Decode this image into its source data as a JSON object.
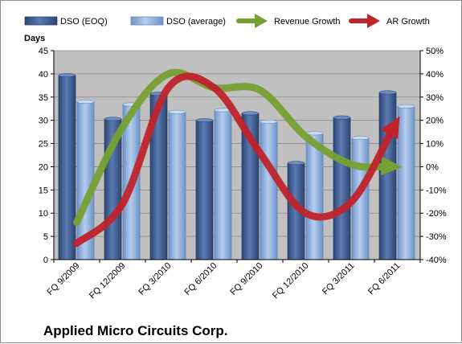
{
  "chart_data": {
    "type": "bar",
    "title": "Applied Micro Circuits Corp.",
    "ylabel": "Days",
    "categories": [
      "FQ 9/2009",
      "FQ 12/2009",
      "FQ 3/2010",
      "FQ 6/2010",
      "FQ 9/2010",
      "FQ 12/2010",
      "FQ 3/2011",
      "FQ 6/2011"
    ],
    "ylim": [
      0,
      45
    ],
    "y_ticks": [
      "0",
      "5",
      "10",
      "15",
      "20",
      "25",
      "30",
      "35",
      "40",
      "45"
    ],
    "y2lim": [
      -40,
      50
    ],
    "y2_ticks": [
      "-40%",
      "-30%",
      "-20%",
      "-10%",
      "0%",
      "10%",
      "20%",
      "30%",
      "40%",
      "50%"
    ],
    "grid": true,
    "legend": "top",
    "series": [
      {
        "name": "DSO (EOQ)",
        "kind": "bar",
        "axis": "left",
        "color": "#3d5a8c",
        "values": [
          39.7,
          30.3,
          35.7,
          30.0,
          31.5,
          20.8,
          30.6,
          36.0
        ]
      },
      {
        "name": "DSO (average)",
        "kind": "bar",
        "axis": "left",
        "color": "#8eb4e3",
        "values": [
          34.0,
          33.4,
          31.8,
          32.2,
          29.7,
          27.2,
          26.2,
          33.0
        ]
      },
      {
        "name": "Revenue Growth",
        "kind": "line",
        "axis": "right",
        "color": "#77a033",
        "values": [
          -24,
          17,
          40,
          34,
          33,
          13,
          1,
          0
        ]
      },
      {
        "name": "AR Growth",
        "kind": "line",
        "axis": "right",
        "color": "#c0232b",
        "values": [
          -33,
          -16,
          34,
          34,
          6,
          -20,
          -15,
          20
        ]
      }
    ]
  }
}
